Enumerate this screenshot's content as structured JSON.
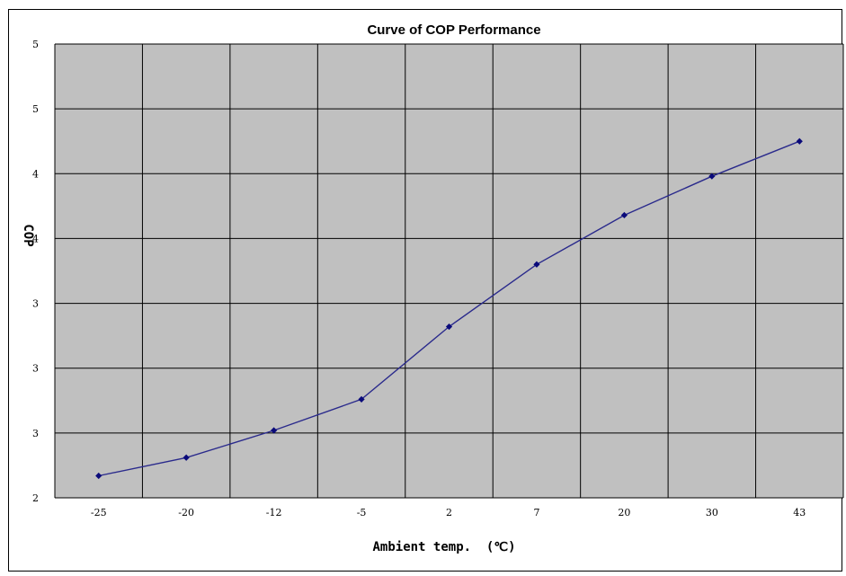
{
  "chart_data": {
    "type": "line",
    "title": "Curve of COP Performance",
    "xlabel": "Ambient temp.  (℃)",
    "ylabel": "COP",
    "categories": [
      "-25",
      "-20",
      "-12",
      "-5",
      "2",
      "7",
      "20",
      "30",
      "43"
    ],
    "y_tick_labels": [
      "2",
      "3",
      "3",
      "3",
      "4",
      "4",
      "5",
      "5"
    ],
    "ylim": [
      2,
      5.5
    ],
    "series": [
      {
        "values": [
          2.17,
          2.31,
          2.52,
          2.76,
          3.32,
          3.8,
          4.18,
          4.48,
          4.75
        ]
      }
    ],
    "grid": true,
    "colors": {
      "plot_background": "#c0c0c0",
      "grid": "#000000",
      "line": "#2a2a8c",
      "marker": "#0a0a7a"
    }
  }
}
